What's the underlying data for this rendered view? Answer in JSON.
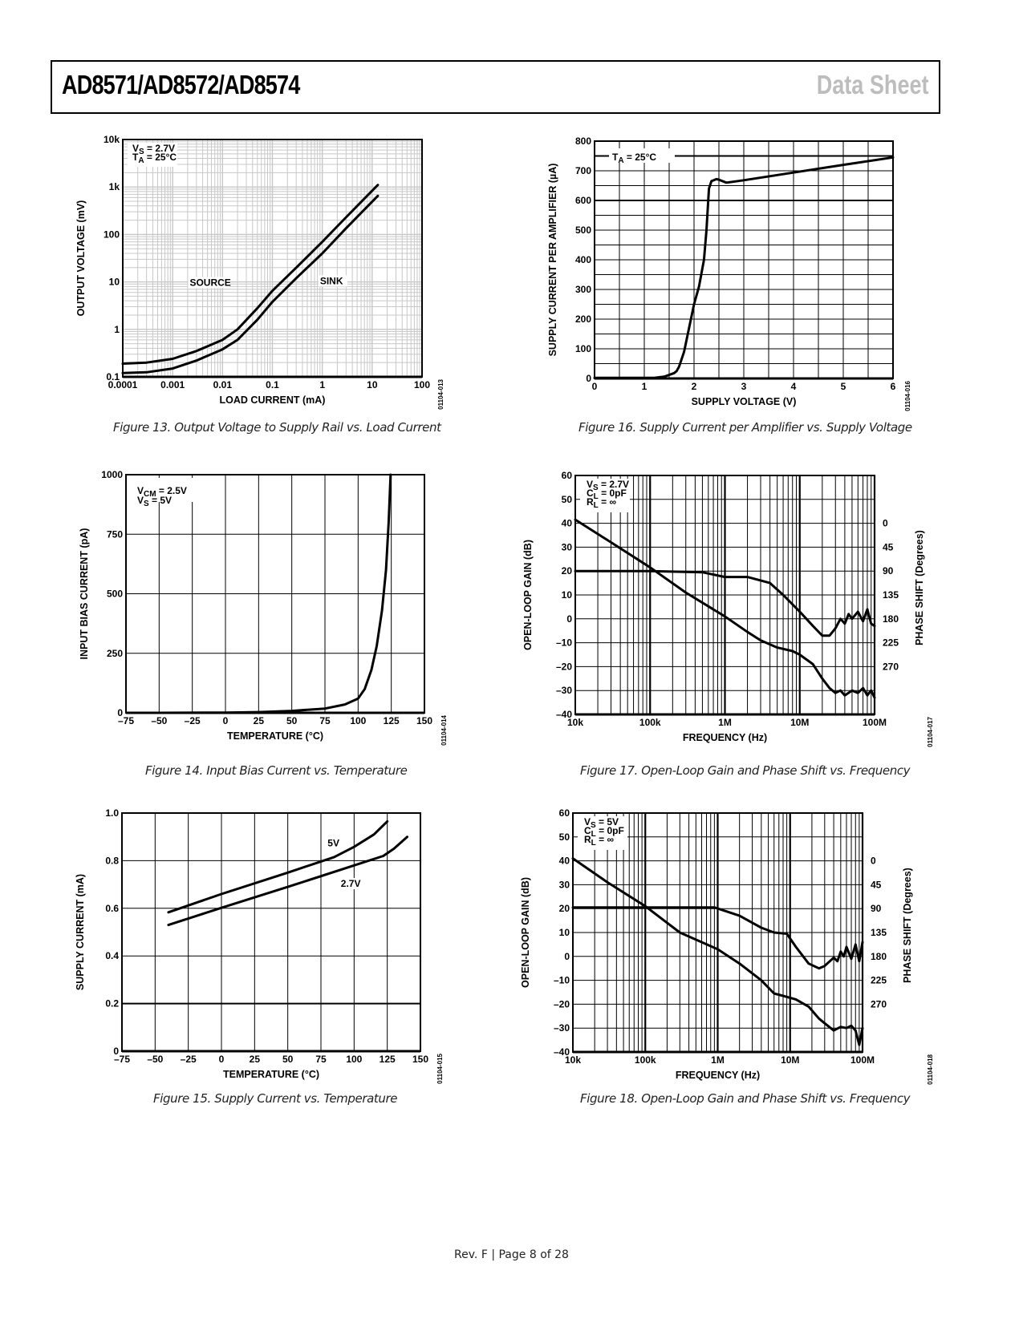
{
  "header": {
    "title": "AD8571/AD8572/AD8574",
    "section": "Data Sheet"
  },
  "footer": {
    "text": "Rev. F | Page 8 of 28"
  },
  "chart_data": [
    {
      "id": "fig13",
      "type": "line",
      "scale": "loglog",
      "caption": "Figure 13. Output Voltage to Supply Rail vs. Load Current",
      "code": "01104-013",
      "xlabel": "LOAD CURRENT (mA)",
      "ylabel": "OUTPUT VOLTAGE (mV)",
      "xlim": [
        0.0001,
        100
      ],
      "ylim": [
        0.1,
        10000
      ],
      "xticks": [
        "0.0001",
        "0.001",
        "0.01",
        "0.1",
        "1",
        "10",
        "100"
      ],
      "yticks": [
        "0.1",
        "1",
        "10",
        "100",
        "1k",
        "10k"
      ],
      "annotation": [
        "V_S = 2.7V",
        "T_A = 25°C"
      ],
      "grid": "minor",
      "series": [
        {
          "name": "SOURCE",
          "x": [
            0.0001,
            0.0003,
            0.001,
            0.003,
            0.01,
            0.02,
            0.05,
            0.1,
            0.3,
            1,
            3,
            13
          ],
          "y": [
            0.19,
            0.2,
            0.24,
            0.35,
            0.6,
            1.0,
            2.8,
            6.5,
            20,
            70,
            230,
            1100
          ]
        },
        {
          "name": "SINK",
          "x": [
            0.0001,
            0.0003,
            0.001,
            0.003,
            0.01,
            0.02,
            0.05,
            0.1,
            0.3,
            1,
            3,
            13
          ],
          "y": [
            0.12,
            0.125,
            0.15,
            0.22,
            0.38,
            0.6,
            1.6,
            3.8,
            12,
            40,
            135,
            650
          ]
        }
      ],
      "labels": [
        {
          "text": "SOURCE",
          "x": 0.0022,
          "y": 8.3
        },
        {
          "text": "SINK",
          "x": 0.9,
          "y": 9.0
        }
      ]
    },
    {
      "id": "fig16",
      "type": "line",
      "scale": "linear",
      "caption": "Figure 16. Supply Current per Amplifier vs. Supply Voltage",
      "code": "01104-016",
      "xlabel": "SUPPLY VOLTAGE (V)",
      "ylabel": "SUPPLY CURRENT PER AMPLIFIER (µA)",
      "xlim": [
        0,
        6
      ],
      "ylim": [
        0,
        800
      ],
      "xticks": [
        "0",
        "1",
        "2",
        "3",
        "4",
        "5",
        "6"
      ],
      "yticks": [
        "0",
        "100",
        "200",
        "300",
        "400",
        "500",
        "600",
        "700",
        "800"
      ],
      "annotation": [
        "T_A = 25°C"
      ],
      "grid": "half",
      "series": [
        {
          "name": "Supply current",
          "x": [
            0,
            1.2,
            1.4,
            1.5,
            1.6,
            1.65,
            1.7,
            1.8,
            1.9,
            2.0,
            2.1,
            2.2,
            2.25,
            2.3,
            2.35,
            2.45,
            2.5,
            2.65,
            3,
            4,
            5,
            6
          ],
          "y": [
            2,
            2,
            6,
            12,
            18,
            25,
            40,
            90,
            170,
            250,
            310,
            400,
            500,
            640,
            665,
            672,
            670,
            660,
            668,
            694,
            720,
            745
          ]
        }
      ]
    },
    {
      "id": "fig14",
      "type": "line",
      "scale": "linear",
      "caption": "Figure 14. Input Bias Current vs. Temperature",
      "code": "01104-014",
      "xlabel": "TEMPERATURE (°C)",
      "ylabel": "INPUT BIAS CURRENT (pA)",
      "xlim": [
        -75,
        150
      ],
      "ylim": [
        0,
        1000
      ],
      "xticks": [
        "–75",
        "–50",
        "–25",
        "0",
        "25",
        "50",
        "75",
        "100",
        "125",
        "150"
      ],
      "yticks": [
        "0",
        "250",
        "500",
        "750",
        "1000"
      ],
      "annotation": [
        "V_CM = 2.5V",
        "V_S = 5V"
      ],
      "grid": "major",
      "series": [
        {
          "name": "Bias current",
          "x": [
            -50,
            0,
            25,
            50,
            75,
            90,
            100,
            105,
            110,
            114,
            118,
            121,
            123,
            124.5
          ],
          "y": [
            0,
            1,
            3,
            8,
            18,
            35,
            60,
            100,
            180,
            280,
            430,
            600,
            800,
            1000
          ]
        }
      ]
    },
    {
      "id": "fig17",
      "type": "line",
      "scale": "semilogx",
      "caption": "Figure 17. Open-Loop Gain and Phase Shift vs. Frequency",
      "code": "01104-017",
      "xlabel": "FREQUENCY (Hz)",
      "ylabel": "OPEN-LOOP GAIN (dB)",
      "y2label": "PHASE SHIFT (Degrees)",
      "xlim": [
        10000,
        100000000
      ],
      "ylim": [
        -40,
        60
      ],
      "xticks": [
        "10k",
        "100k",
        "1M",
        "10M",
        "100M"
      ],
      "yticks": [
        "–40",
        "–30",
        "–20",
        "–10",
        "0",
        "10",
        "20",
        "30",
        "40",
        "50",
        "60"
      ],
      "y2ticks": [
        "0",
        "45",
        "90",
        "135",
        "180",
        "225",
        "270"
      ],
      "annotation": [
        "V_S = 2.7V",
        "C_L = 0pF",
        "R_L = ∞"
      ],
      "grid": "minor",
      "series": [
        {
          "name": "Gain",
          "x": [
            10000,
            30000,
            100000,
            300000,
            1000000,
            2000000,
            3000000,
            5000000,
            8000000,
            10000000,
            15000000,
            20000000,
            25000000,
            30000000,
            35000000,
            40000000,
            50000000,
            60000000,
            70000000,
            80000000,
            90000000,
            100000000
          ],
          "y": [
            41.5,
            32,
            21.5,
            11,
            1,
            -5.5,
            -9,
            -12,
            -13.5,
            -15,
            -19,
            -25,
            -29,
            -31,
            -30,
            -32,
            -30,
            -31,
            -29,
            -32,
            -30,
            -33
          ]
        },
        {
          "name": "Phase",
          "x": [
            10000,
            100000,
            500000,
            1000000,
            2000000,
            4000000,
            6000000,
            10000000,
            15000000,
            20000000,
            25000000,
            30000000,
            35000000,
            40000000,
            45000000,
            50000000,
            60000000,
            70000000,
            80000000,
            90000000,
            100000000
          ],
          "y": [
            20,
            20,
            19.5,
            17.5,
            17.5,
            15,
            10,
            3,
            -3,
            -7,
            -7,
            -4,
            0,
            -2,
            2,
            0,
            3,
            -1,
            4,
            -2,
            -3
          ]
        }
      ]
    },
    {
      "id": "fig15",
      "type": "line",
      "scale": "linear",
      "caption": "Figure 15. Supply Current vs. Temperature",
      "code": "01104-015",
      "xlabel": "TEMPERATURE (°C)",
      "ylabel": "SUPPLY CURRENT (mA)",
      "xlim": [
        -75,
        150
      ],
      "ylim": [
        0,
        1.0
      ],
      "xticks": [
        "–75",
        "–50",
        "–25",
        "0",
        "25",
        "50",
        "75",
        "100",
        "125",
        "150"
      ],
      "yticks": [
        "0",
        "0.2",
        "0.4",
        "0.6",
        "0.8",
        "1.0"
      ],
      "grid": "major",
      "series": [
        {
          "name": "5V",
          "x": [
            -40,
            0,
            50,
            85,
            100,
            115,
            125
          ],
          "y": [
            0.583,
            0.66,
            0.75,
            0.815,
            0.858,
            0.91,
            0.965
          ]
        },
        {
          "name": "2.7V",
          "x": [
            -40,
            0,
            50,
            100,
            122,
            130,
            140
          ],
          "y": [
            0.53,
            0.602,
            0.69,
            0.78,
            0.82,
            0.85,
            0.9
          ]
        }
      ],
      "labels": [
        {
          "text": "5V",
          "x": 80,
          "y": 0.86
        },
        {
          "text": "2.7V",
          "x": 90,
          "y": 0.69
        }
      ]
    },
    {
      "id": "fig18",
      "type": "line",
      "scale": "semilogx",
      "caption": "Figure 18. Open-Loop Gain and Phase Shift vs. Frequency",
      "code": "01104-018",
      "xlabel": "FREQUENCY (Hz)",
      "ylabel": "OPEN-LOOP GAIN (dB)",
      "y2label": "PHASE SHIFT (Degrees)",
      "xlim": [
        10000,
        100000000
      ],
      "ylim": [
        -40,
        60
      ],
      "xticks": [
        "10k",
        "100k",
        "1M",
        "10M",
        "100M"
      ],
      "yticks": [
        "–40",
        "–30",
        "–20",
        "–10",
        "0",
        "10",
        "20",
        "30",
        "40",
        "50",
        "60"
      ],
      "y2ticks": [
        "0",
        "45",
        "90",
        "135",
        "180",
        "225",
        "270"
      ],
      "annotation": [
        "V_S = 5V",
        "C_L = 0pF",
        "R_L = ∞"
      ],
      "grid": "minor",
      "series": [
        {
          "name": "Gain",
          "x": [
            10000,
            30000,
            100000,
            300000,
            1000000,
            2000000,
            4000000,
            6000000,
            8000000,
            12000000,
            18000000,
            25000000,
            30000000,
            40000000,
            50000000,
            60000000,
            70000000,
            80000000,
            90000000,
            100000000
          ],
          "y": [
            41,
            31,
            21,
            10,
            3,
            -3,
            -10,
            -15.5,
            -16.5,
            -18,
            -21,
            -26,
            -28,
            -31,
            -29.5,
            -30,
            -29,
            -31,
            -37,
            -30
          ]
        },
        {
          "name": "Phase",
          "x": [
            10000,
            100000,
            900000,
            2000000,
            4000000,
            6000000,
            9000000,
            12000000,
            18000000,
            25000000,
            30000000,
            40000000,
            45000000,
            50000000,
            55000000,
            60000000,
            70000000,
            80000000,
            90000000,
            100000000
          ],
          "y": [
            20.5,
            20.5,
            20.5,
            17,
            12,
            10,
            9.5,
            4,
            -3,
            -5,
            -4,
            -0.5,
            -2,
            2,
            0,
            4,
            -1,
            5,
            -2,
            6
          ]
        }
      ]
    }
  ]
}
